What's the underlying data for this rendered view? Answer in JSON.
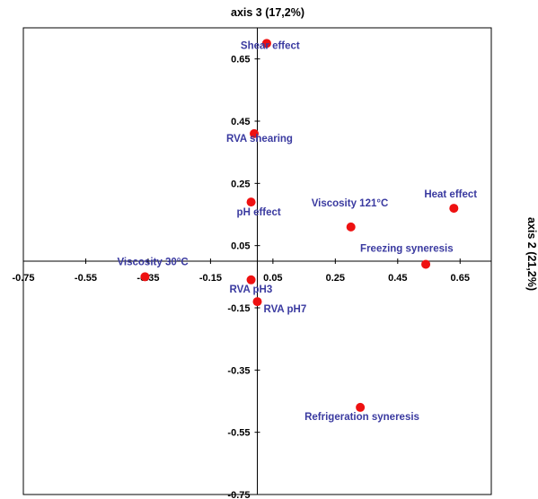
{
  "chart_data": {
    "type": "scatter",
    "xlabel": "axis 2 (21,2%)",
    "ylabel": "axis 3 (17,2%)",
    "xlim": [
      -0.75,
      0.75
    ],
    "ylim": [
      -0.75,
      0.75
    ],
    "xticks": [
      "-0.75",
      "-0.55",
      "-0.35",
      "-0.15",
      "0.05",
      "0.25",
      "0.45",
      "0.65"
    ],
    "yticks": [
      "0.65",
      "0.45",
      "0.25",
      "0.05",
      "-0.15",
      "-0.35",
      "-0.55",
      "-0.75"
    ],
    "grid": false,
    "marker_color": "#ee1111",
    "label_color": "#3a3aa0",
    "points": [
      {
        "label": "Shear effect",
        "x": 0.03,
        "y": 0.7
      },
      {
        "label": "RVA shearing",
        "x": -0.01,
        "y": 0.41
      },
      {
        "label": "pH effect",
        "x": -0.02,
        "y": 0.19
      },
      {
        "label": "Viscosity 121°C",
        "x": 0.3,
        "y": 0.11
      },
      {
        "label": "Heat effect",
        "x": 0.63,
        "y": 0.17
      },
      {
        "label": "Freezing syneresis",
        "x": 0.54,
        "y": -0.01
      },
      {
        "label": "Viscosity 30°C",
        "x": -0.36,
        "y": -0.05
      },
      {
        "label": "RVA pH3",
        "x": -0.02,
        "y": -0.06
      },
      {
        "label": "RVA pH7",
        "x": 0.0,
        "y": -0.13
      },
      {
        "label": "Refrigeration syneresis",
        "x": 0.33,
        "y": -0.47
      }
    ]
  }
}
